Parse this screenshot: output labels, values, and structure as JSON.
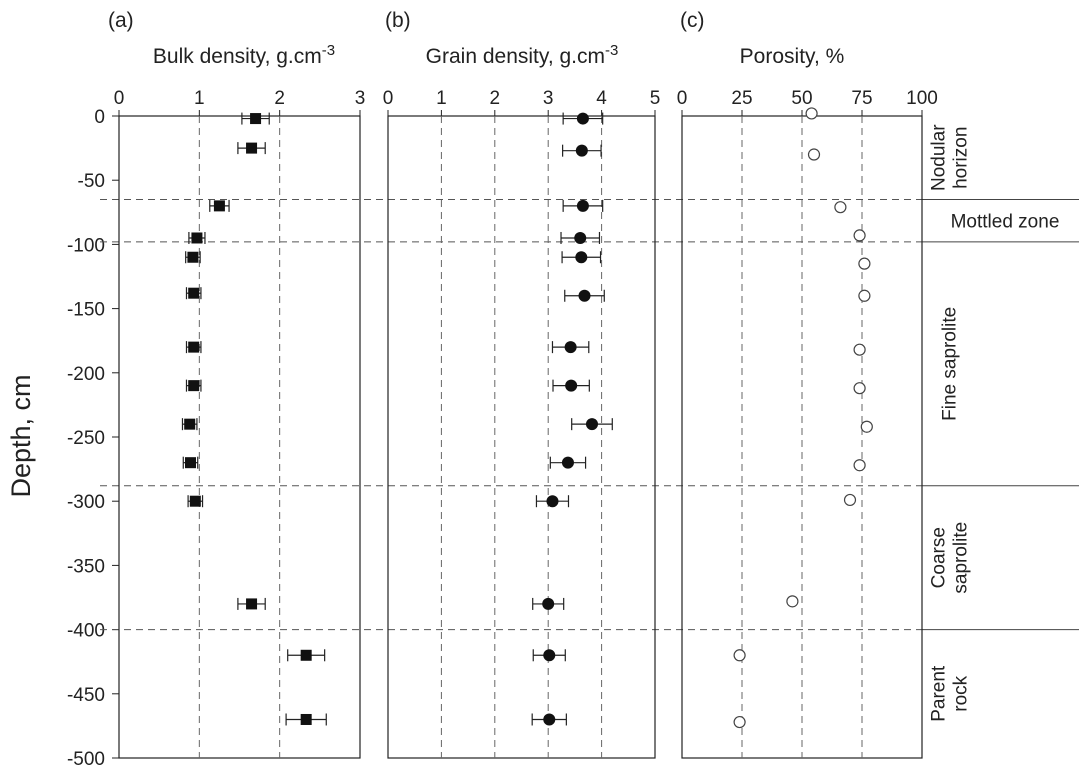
{
  "figure": {
    "ylabel": "Depth, cm",
    "yticks": [
      0,
      -50,
      -100,
      -150,
      -200,
      -250,
      -300,
      -350,
      -400,
      -450,
      -500
    ],
    "ylim": [
      -500,
      0
    ],
    "boundaries": [
      -65,
      -98,
      -288,
      -400
    ],
    "zones": [
      {
        "name": "nodular-horizon",
        "lines": [
          "Nodular",
          "horizon"
        ],
        "orientation": "vertical",
        "depth_range": [
          0,
          -65
        ]
      },
      {
        "name": "mottled-zone",
        "lines": [
          "Mottled zone"
        ],
        "orientation": "horizontal",
        "depth_range": [
          -65,
          -98
        ]
      },
      {
        "name": "fine-saprolite",
        "lines": [
          "Fine saprolite"
        ],
        "orientation": "vertical",
        "depth_range": [
          -98,
          -288
        ]
      },
      {
        "name": "coarse-saprolite",
        "lines": [
          "Coarse",
          "saprolite"
        ],
        "orientation": "vertical",
        "depth_range": [
          -288,
          -400
        ]
      },
      {
        "name": "parent-rock",
        "lines": [
          "Parent",
          "rock"
        ],
        "orientation": "vertical",
        "depth_range": [
          -400,
          -500
        ]
      }
    ]
  },
  "chart_data": [
    {
      "type": "scatter",
      "panel": "(a)",
      "title": "Bulk density, g.cm",
      "title_superscript": "-3",
      "xlim": [
        0,
        3
      ],
      "xticks": [
        0,
        1,
        2,
        3
      ],
      "grid_x": [
        1,
        2
      ],
      "marker": "filled-square",
      "points": [
        {
          "depth": -2,
          "value": 1.7,
          "err": 0.17
        },
        {
          "depth": -25,
          "value": 1.65,
          "err": 0.17
        },
        {
          "depth": -70,
          "value": 1.25,
          "err": 0.12
        },
        {
          "depth": -95,
          "value": 0.97,
          "err": 0.1
        },
        {
          "depth": -110,
          "value": 0.92,
          "err": 0.09
        },
        {
          "depth": -138,
          "value": 0.93,
          "err": 0.09
        },
        {
          "depth": -180,
          "value": 0.93,
          "err": 0.09
        },
        {
          "depth": -210,
          "value": 0.93,
          "err": 0.09
        },
        {
          "depth": -240,
          "value": 0.88,
          "err": 0.09
        },
        {
          "depth": -270,
          "value": 0.89,
          "err": 0.09
        },
        {
          "depth": -300,
          "value": 0.95,
          "err": 0.09
        },
        {
          "depth": -380,
          "value": 1.65,
          "err": 0.17
        },
        {
          "depth": -420,
          "value": 2.33,
          "err": 0.23
        },
        {
          "depth": -470,
          "value": 2.33,
          "err": 0.25
        }
      ]
    },
    {
      "type": "scatter",
      "panel": "(b)",
      "title": "Grain density, g.cm",
      "title_superscript": "-3",
      "xlim": [
        0,
        5
      ],
      "xticks": [
        0,
        1,
        2,
        3,
        4,
        5
      ],
      "grid_x": [
        1,
        2,
        3,
        4
      ],
      "marker": "filled-circle",
      "points": [
        {
          "depth": -2,
          "value": 3.65,
          "err": 0.37
        },
        {
          "depth": -27,
          "value": 3.63,
          "err": 0.36
        },
        {
          "depth": -70,
          "value": 3.65,
          "err": 0.37
        },
        {
          "depth": -95,
          "value": 3.6,
          "err": 0.36
        },
        {
          "depth": -110,
          "value": 3.62,
          "err": 0.36
        },
        {
          "depth": -140,
          "value": 3.68,
          "err": 0.37
        },
        {
          "depth": -180,
          "value": 3.42,
          "err": 0.34
        },
        {
          "depth": -210,
          "value": 3.43,
          "err": 0.34
        },
        {
          "depth": -240,
          "value": 3.82,
          "err": 0.38
        },
        {
          "depth": -270,
          "value": 3.37,
          "err": 0.33
        },
        {
          "depth": -300,
          "value": 3.08,
          "err": 0.3
        },
        {
          "depth": -380,
          "value": 3.0,
          "err": 0.29
        },
        {
          "depth": -420,
          "value": 3.02,
          "err": 0.3
        },
        {
          "depth": -470,
          "value": 3.02,
          "err": 0.32
        }
      ]
    },
    {
      "type": "scatter",
      "panel": "(c)",
      "title": "Porosity, %",
      "title_superscript": "",
      "xlim": [
        0,
        100
      ],
      "xticks": [
        0,
        25,
        50,
        75,
        100
      ],
      "grid_x": [
        25,
        50,
        75
      ],
      "marker": "open-circle",
      "points": [
        {
          "depth": 2,
          "value": 54
        },
        {
          "depth": -30,
          "value": 55
        },
        {
          "depth": -71,
          "value": 66
        },
        {
          "depth": -93,
          "value": 74
        },
        {
          "depth": -115,
          "value": 76
        },
        {
          "depth": -140,
          "value": 76
        },
        {
          "depth": -182,
          "value": 74
        },
        {
          "depth": -212,
          "value": 74
        },
        {
          "depth": -242,
          "value": 77
        },
        {
          "depth": -272,
          "value": 74
        },
        {
          "depth": -299,
          "value": 70
        },
        {
          "depth": -378,
          "value": 46
        },
        {
          "depth": -420,
          "value": 24
        },
        {
          "depth": -472,
          "value": 24
        }
      ]
    }
  ]
}
